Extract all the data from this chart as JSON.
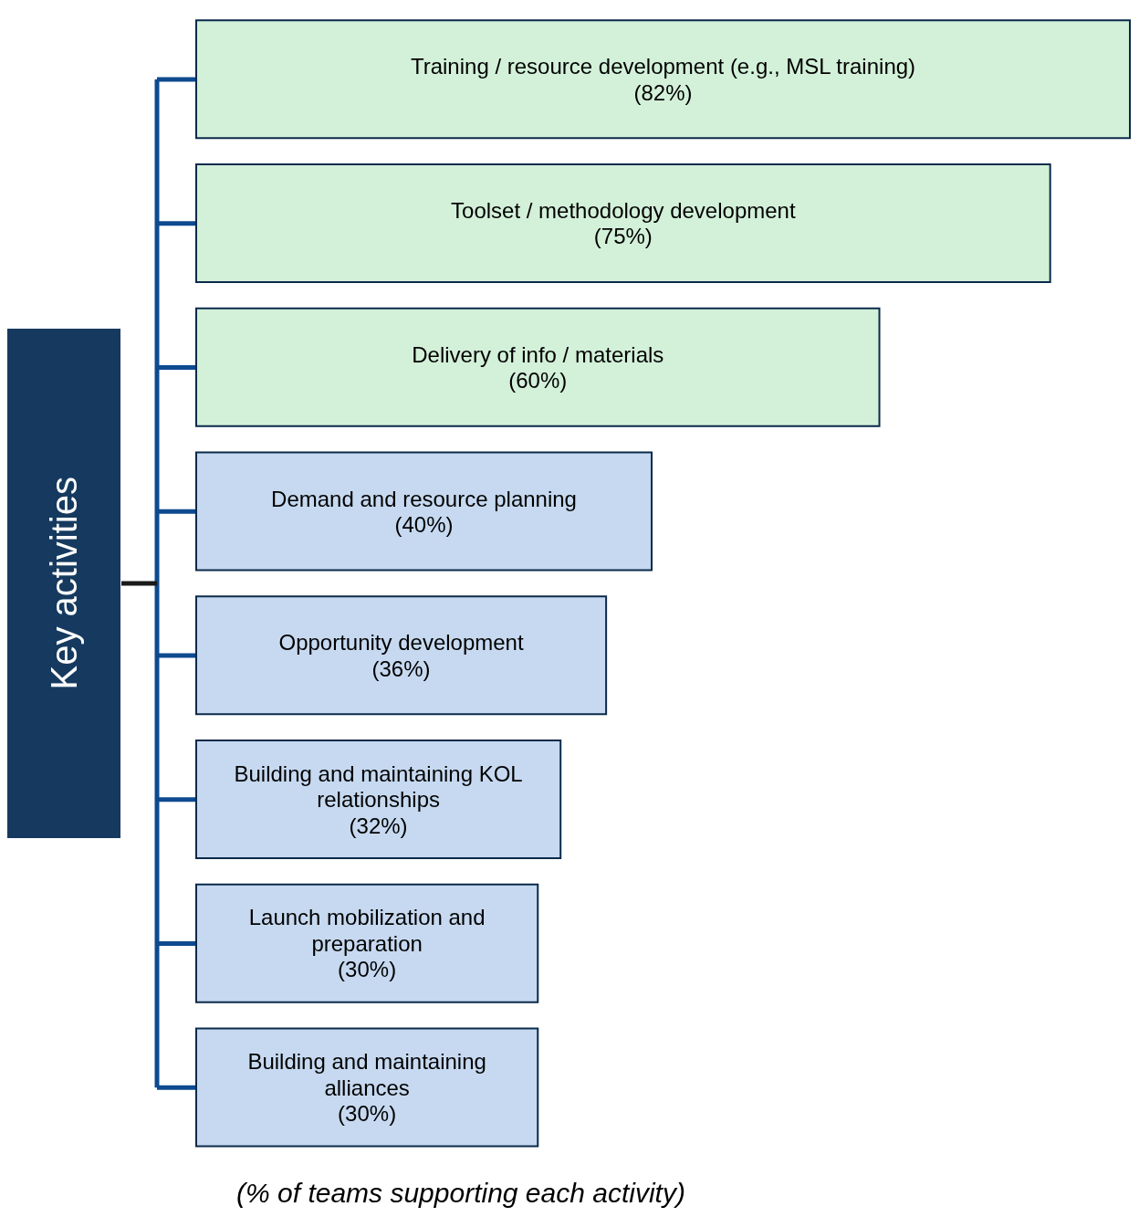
{
  "chart_data": {
    "type": "bar",
    "orientation": "horizontal",
    "categories": [
      "Training / resource development (e.g., MSL training)",
      "Toolset / methodology development",
      "Delivery of info / materials",
      "Demand and resource planning",
      "Opportunity development",
      "Building and maintaining KOL relationships",
      "Launch mobilization and preparation",
      "Building and maintaining alliances"
    ],
    "values": [
      82,
      75,
      60,
      40,
      36,
      32,
      30,
      30
    ],
    "value_labels": [
      "(82%)",
      "(75%)",
      "(60%)",
      "(40%)",
      "(36%)",
      "(32%)",
      "(30%)",
      "(30%)"
    ],
    "colors": [
      "#d3f0d9",
      "#d3f0d9",
      "#d3f0d9",
      "#c6d9f0",
      "#c6d9f0",
      "#c6d9f0",
      "#c6d9f0",
      "#c6d9f0"
    ],
    "ylabel": "Key activities",
    "xlabel": "(% of teams supporting each activity)"
  }
}
